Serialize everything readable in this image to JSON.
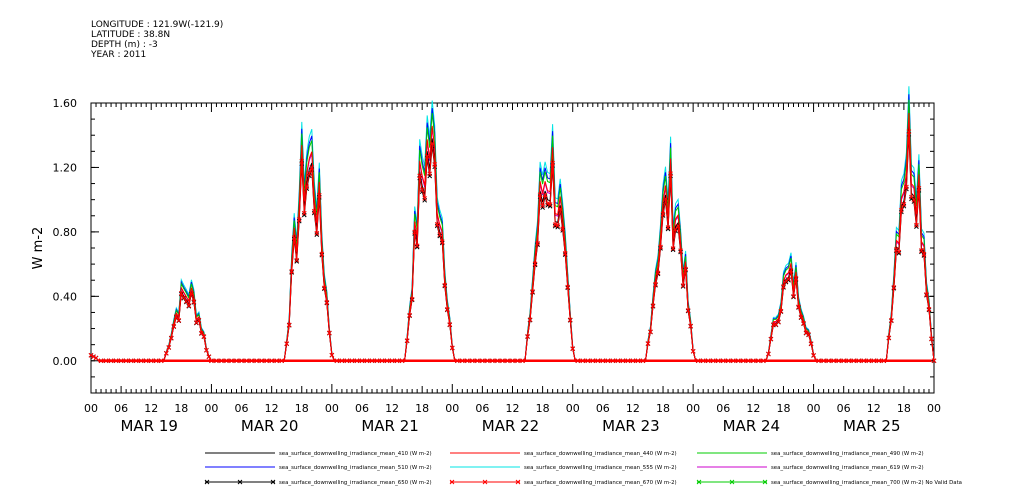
{
  "header": {
    "lines": [
      "LONGITUDE : 121.9W(-121.9)",
      "LATITUDE : 38.8N",
      "DEPTH (m) : -3",
      "YEAR : 2011"
    ]
  },
  "chart_data": {
    "type": "line",
    "title": "",
    "ylabel": "W m-2",
    "xlabel": "",
    "ylim": [
      -0.2,
      1.6
    ],
    "xlim_hours": [
      0,
      168
    ],
    "y_ticks": [
      "0.00",
      "0.40",
      "0.80",
      "1.20",
      "1.60"
    ],
    "y_tick_values": [
      0.0,
      0.4,
      0.8,
      1.2,
      1.6
    ],
    "hour_tick_labels": [
      "00",
      "06",
      "12",
      "18",
      "00",
      "06",
      "12",
      "18",
      "00",
      "06",
      "12",
      "18",
      "00",
      "06",
      "12",
      "18",
      "00",
      "06",
      "12",
      "18",
      "00",
      "06",
      "12",
      "18",
      "00",
      "06",
      "12",
      "18",
      "00"
    ],
    "day_labels": [
      "MAR 19",
      "MAR 20",
      "MAR 21",
      "MAR 22",
      "MAR 23",
      "MAR 24",
      "MAR 25"
    ],
    "day_peaks": [
      {
        "day": "MAR 19",
        "start_h": 14.5,
        "end_h": 23.8,
        "peak": 0.45
      },
      {
        "day": "MAR 20",
        "start_h": 38.5,
        "end_h": 48.2,
        "peak": 1.32
      },
      {
        "day": "MAR 21",
        "start_h": 62.5,
        "end_h": 72.3,
        "peak": 1.42
      },
      {
        "day": "MAR 22",
        "start_h": 86.5,
        "end_h": 96.3,
        "peak": 1.3
      },
      {
        "day": "MAR 23",
        "start_h": 110.5,
        "end_h": 120.3,
        "peak": 1.1
      },
      {
        "day": "MAR 24",
        "start_h": 134.5,
        "end_h": 144.3,
        "peak": 0.55
      },
      {
        "day": "MAR 25",
        "start_h": 158.5,
        "end_h": 168.0,
        "peak": 1.45
      }
    ],
    "series": [
      {
        "name": "sea_surface_downwelling_irradiance_mean_410 (W m-2)",
        "color": "#000000",
        "scale": 0.88,
        "marker": ""
      },
      {
        "name": "sea_surface_downwelling_irradiance_mean_440 (W m-2)",
        "color": "#ff0000",
        "scale": 0.93,
        "marker": ""
      },
      {
        "name": "sea_surface_downwelling_irradiance_mean_490 (W m-2)",
        "color": "#00cc00",
        "scale": 0.98,
        "marker": ""
      },
      {
        "name": "sea_surface_downwelling_irradiance_mean_510 (W m-2)",
        "color": "#0000ff",
        "scale": 1.0,
        "marker": ""
      },
      {
        "name": "sea_surface_downwelling_irradiance_mean_555 (W m-2)",
        "color": "#00e5e5",
        "scale": 1.03,
        "marker": ""
      },
      {
        "name": "sea_surface_downwelling_irradiance_mean_619 (W m-2)",
        "color": "#cc00cc",
        "scale": 0.92,
        "marker": ""
      },
      {
        "name": "sea_surface_downwelling_irradiance_mean_650 (W m-2)",
        "color": "#000000",
        "scale": 0.85,
        "marker": "x"
      },
      {
        "name": "sea_surface_downwelling_irradiance_mean_670 (W m-2)",
        "color": "#ff0000",
        "scale": 0.86,
        "marker": "x"
      },
      {
        "name": "sea_surface_downwelling_irradiance_mean_700 (W m-2) No Valid Data",
        "color": "#00cc00",
        "scale": 0,
        "marker": "x"
      }
    ]
  }
}
